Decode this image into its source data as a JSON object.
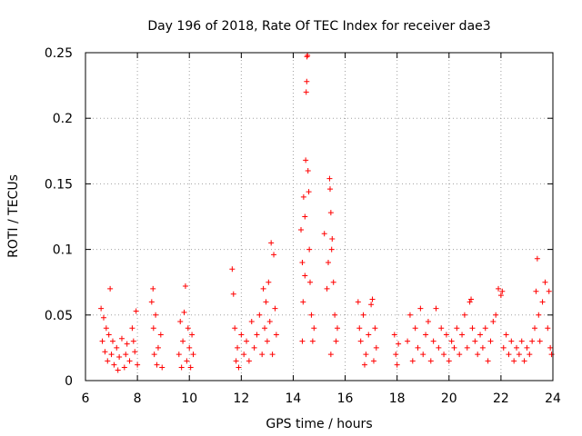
{
  "chart_data": {
    "type": "scatter",
    "title": "Day 196 of 2018, Rate Of TEC Index for receiver dae3",
    "xlabel": "GPS time / hours",
    "ylabel": "ROTI / TECUs",
    "xlim": [
      6,
      24
    ],
    "ylim": [
      0,
      0.25
    ],
    "xticks": [
      6,
      8,
      10,
      12,
      14,
      16,
      18,
      20,
      22,
      24
    ],
    "xtick_labels": [
      "6",
      "8",
      "10",
      "12",
      "14",
      "16",
      "18",
      "20",
      "22",
      "24"
    ],
    "yticks": [
      0,
      0.05,
      0.1,
      0.15,
      0.2,
      0.25
    ],
    "ytick_labels": [
      "0",
      "0.05",
      "0.1",
      "0.15",
      "0.2",
      "0.25"
    ],
    "grid": true,
    "marker": "+",
    "color": "#ff0000",
    "series": [
      {
        "name": "ROTI",
        "points": [
          [
            6.6,
            0.055
          ],
          [
            6.65,
            0.03
          ],
          [
            6.7,
            0.048
          ],
          [
            6.75,
            0.022
          ],
          [
            6.8,
            0.04
          ],
          [
            6.85,
            0.015
          ],
          [
            6.9,
            0.035
          ],
          [
            6.95,
            0.07
          ],
          [
            7.0,
            0.02
          ],
          [
            7.05,
            0.03
          ],
          [
            7.1,
            0.012
          ],
          [
            7.2,
            0.025
          ],
          [
            7.3,
            0.018
          ],
          [
            7.4,
            0.032
          ],
          [
            7.5,
            0.01
          ],
          [
            7.6,
            0.028
          ],
          [
            7.7,
            0.015
          ],
          [
            7.8,
            0.04
          ],
          [
            7.9,
            0.022
          ],
          [
            8.0,
            0.012
          ],
          [
            7.95,
            0.053
          ],
          [
            7.85,
            0.03
          ],
          [
            7.55,
            0.02
          ],
          [
            7.25,
            0.008
          ],
          [
            8.55,
            0.06
          ],
          [
            8.6,
            0.07
          ],
          [
            8.62,
            0.04
          ],
          [
            8.65,
            0.02
          ],
          [
            8.7,
            0.05
          ],
          [
            8.75,
            0.012
          ],
          [
            8.8,
            0.025
          ],
          [
            8.9,
            0.035
          ],
          [
            8.95,
            0.01
          ],
          [
            9.6,
            0.02
          ],
          [
            9.65,
            0.045
          ],
          [
            9.7,
            0.01
          ],
          [
            9.75,
            0.03
          ],
          [
            9.8,
            0.052
          ],
          [
            9.85,
            0.072
          ],
          [
            9.9,
            0.015
          ],
          [
            9.95,
            0.04
          ],
          [
            10.0,
            0.025
          ],
          [
            10.05,
            0.01
          ],
          [
            10.1,
            0.035
          ],
          [
            10.15,
            0.02
          ],
          [
            11.65,
            0.085
          ],
          [
            11.7,
            0.066
          ],
          [
            11.75,
            0.04
          ],
          [
            11.8,
            0.015
          ],
          [
            11.85,
            0.025
          ],
          [
            11.9,
            0.01
          ],
          [
            12.0,
            0.035
          ],
          [
            12.1,
            0.02
          ],
          [
            12.2,
            0.03
          ],
          [
            12.3,
            0.015
          ],
          [
            12.4,
            0.045
          ],
          [
            12.5,
            0.025
          ],
          [
            12.6,
            0.035
          ],
          [
            12.7,
            0.05
          ],
          [
            12.8,
            0.02
          ],
          [
            12.85,
            0.07
          ],
          [
            12.9,
            0.04
          ],
          [
            12.95,
            0.06
          ],
          [
            13.0,
            0.03
          ],
          [
            13.05,
            0.075
          ],
          [
            13.1,
            0.045
          ],
          [
            13.15,
            0.105
          ],
          [
            13.2,
            0.02
          ],
          [
            13.25,
            0.096
          ],
          [
            13.3,
            0.055
          ],
          [
            13.35,
            0.035
          ],
          [
            14.3,
            0.115
          ],
          [
            14.35,
            0.09
          ],
          [
            14.38,
            0.06
          ],
          [
            14.4,
            0.14
          ],
          [
            14.45,
            0.125
          ],
          [
            14.48,
            0.168
          ],
          [
            14.5,
            0.22
          ],
          [
            14.52,
            0.228
          ],
          [
            14.53,
            0.247
          ],
          [
            14.55,
            0.248
          ],
          [
            14.57,
            0.16
          ],
          [
            14.6,
            0.144
          ],
          [
            14.62,
            0.1
          ],
          [
            14.65,
            0.075
          ],
          [
            14.7,
            0.05
          ],
          [
            14.75,
            0.03
          ],
          [
            14.8,
            0.04
          ],
          [
            14.45,
            0.08
          ],
          [
            14.35,
            0.03
          ],
          [
            15.2,
            0.112
          ],
          [
            15.3,
            0.07
          ],
          [
            15.35,
            0.09
          ],
          [
            15.4,
            0.154
          ],
          [
            15.42,
            0.146
          ],
          [
            15.45,
            0.128
          ],
          [
            15.48,
            0.1
          ],
          [
            15.5,
            0.108
          ],
          [
            15.55,
            0.075
          ],
          [
            15.6,
            0.05
          ],
          [
            15.65,
            0.03
          ],
          [
            15.7,
            0.04
          ],
          [
            15.45,
            0.02
          ],
          [
            16.5,
            0.06
          ],
          [
            16.55,
            0.04
          ],
          [
            16.6,
            0.03
          ],
          [
            16.7,
            0.05
          ],
          [
            16.8,
            0.02
          ],
          [
            16.9,
            0.035
          ],
          [
            17.0,
            0.058
          ],
          [
            17.05,
            0.062
          ],
          [
            17.1,
            0.015
          ],
          [
            17.15,
            0.04
          ],
          [
            17.2,
            0.025
          ],
          [
            16.75,
            0.012
          ],
          [
            17.9,
            0.035
          ],
          [
            17.95,
            0.02
          ],
          [
            18.0,
            0.012
          ],
          [
            18.05,
            0.028
          ],
          [
            18.4,
            0.03
          ],
          [
            18.5,
            0.05
          ],
          [
            18.6,
            0.015
          ],
          [
            18.7,
            0.04
          ],
          [
            18.8,
            0.025
          ],
          [
            18.9,
            0.055
          ],
          [
            19.0,
            0.02
          ],
          [
            19.1,
            0.035
          ],
          [
            19.2,
            0.045
          ],
          [
            19.3,
            0.015
          ],
          [
            19.4,
            0.03
          ],
          [
            19.5,
            0.055
          ],
          [
            19.6,
            0.025
          ],
          [
            19.7,
            0.04
          ],
          [
            19.8,
            0.02
          ],
          [
            19.9,
            0.035
          ],
          [
            20.0,
            0.015
          ],
          [
            20.1,
            0.03
          ],
          [
            20.2,
            0.025
          ],
          [
            20.3,
            0.04
          ],
          [
            20.4,
            0.02
          ],
          [
            20.5,
            0.035
          ],
          [
            20.6,
            0.05
          ],
          [
            20.7,
            0.025
          ],
          [
            20.8,
            0.06
          ],
          [
            20.85,
            0.062
          ],
          [
            20.9,
            0.04
          ],
          [
            21.0,
            0.03
          ],
          [
            21.1,
            0.02
          ],
          [
            21.2,
            0.035
          ],
          [
            21.3,
            0.025
          ],
          [
            21.4,
            0.04
          ],
          [
            21.5,
            0.015
          ],
          [
            21.6,
            0.03
          ],
          [
            21.7,
            0.045
          ],
          [
            21.8,
            0.05
          ],
          [
            21.9,
            0.07
          ],
          [
            22.0,
            0.065
          ],
          [
            22.05,
            0.068
          ],
          [
            22.1,
            0.025
          ],
          [
            22.2,
            0.035
          ],
          [
            22.3,
            0.02
          ],
          [
            22.4,
            0.03
          ],
          [
            22.5,
            0.015
          ],
          [
            22.6,
            0.025
          ],
          [
            22.7,
            0.02
          ],
          [
            22.8,
            0.03
          ],
          [
            22.9,
            0.015
          ],
          [
            23.0,
            0.025
          ],
          [
            23.1,
            0.02
          ],
          [
            23.2,
            0.03
          ],
          [
            23.3,
            0.04
          ],
          [
            23.35,
            0.068
          ],
          [
            23.4,
            0.093
          ],
          [
            23.45,
            0.05
          ],
          [
            23.5,
            0.03
          ],
          [
            23.6,
            0.06
          ],
          [
            23.7,
            0.075
          ],
          [
            23.8,
            0.04
          ],
          [
            23.85,
            0.068
          ],
          [
            23.9,
            0.025
          ],
          [
            23.95,
            0.02
          ]
        ]
      }
    ]
  }
}
